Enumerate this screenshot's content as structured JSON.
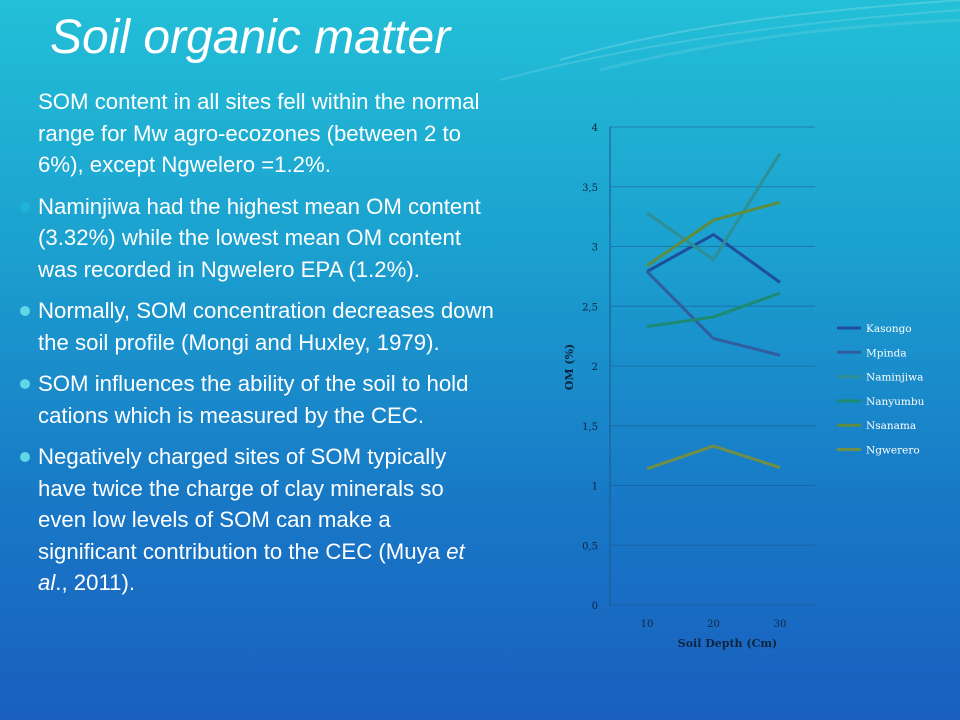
{
  "slide": {
    "title": "Soil organic matter",
    "bullets": [
      {
        "text": "SOM content in all sites fell within the normal range for  Mw agro-ecozones (between 2 to 6%), except Ngwelero =1.2%.",
        "marker": "faint"
      },
      {
        "text": " Naminjiwa had the highest mean OM content (3.32%) while the lowest mean OM content was recorded in Ngwelero EPA (1.2%).",
        "marker": "faint"
      },
      {
        "text": "Normally, SOM concentration decreases down the soil profile (Mongi and Huxley, 1979).",
        "marker": "solid"
      },
      {
        "text": "SOM  influences  the ability of the soil to hold cations which is measured by the CEC.",
        "marker": "solid"
      },
      {
        "text_before": "Negatively charged sites of SOM typically have twice the charge of clay minerals so even low levels of  SOM can make a significant contribution to the CEC (Muya ",
        "text_italic": "et al",
        "text_after": "., 2011).",
        "marker": "solid"
      }
    ]
  },
  "chart_data": {
    "type": "line",
    "title": "",
    "xlabel": "Soil Depth (Cm)",
    "ylabel": "OM (%)",
    "categories": [
      "10",
      "20",
      "30"
    ],
    "y_ticks": [
      "0",
      "0,5",
      "1",
      "1,5",
      "2",
      "2,5",
      "3",
      "3,5",
      "4"
    ],
    "ylim": [
      0,
      4
    ],
    "grid": true,
    "legend_position": "right",
    "series": [
      {
        "name": "Kasongo",
        "values": [
          2.79,
          3.1,
          2.7
        ],
        "color": "#1f4e9c"
      },
      {
        "name": "Mpinda",
        "values": [
          2.79,
          2.23,
          2.09
        ],
        "color": "#2f5f9f"
      },
      {
        "name": "Naminjiwa",
        "values": [
          3.28,
          2.89,
          3.78
        ],
        "color": "#2f8f96"
      },
      {
        "name": "Nanyumbu",
        "values": [
          2.33,
          2.41,
          2.61
        ],
        "color": "#1d8a72"
      },
      {
        "name": "Nsanama",
        "values": [
          2.84,
          3.22,
          3.37
        ],
        "color": "#5e8d3d"
      },
      {
        "name": "Ngwerero",
        "values": [
          1.14,
          1.33,
          1.15
        ],
        "color": "#6e8f45"
      }
    ]
  }
}
